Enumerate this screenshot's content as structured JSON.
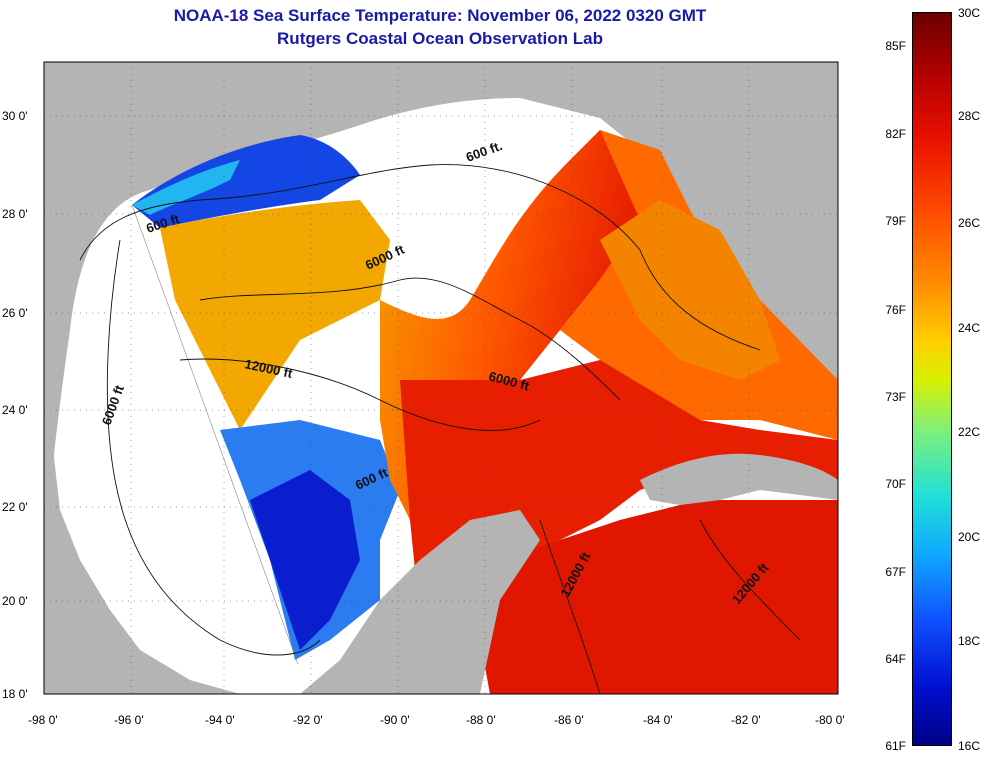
{
  "title": "NOAA-18 Sea Surface Temperature:  November 06, 2022 0320 GMT",
  "subtitle": "Rutgers Coastal Ocean Observation Lab",
  "axes": {
    "lat_labels": [
      "30 0'",
      "28 0'",
      "26 0'",
      "24 0'",
      "22 0'",
      "20 0'",
      "18 0'"
    ],
    "lon_labels": [
      "-98 0'",
      "-96 0'",
      "-94 0'",
      "-92 0'",
      "-90 0'",
      "-88 0'",
      "-86 0'",
      "-84 0'",
      "-82 0'",
      "-80 0'"
    ]
  },
  "contour_labels": [
    {
      "text": "600 ft."
    },
    {
      "text": "600 ft"
    },
    {
      "text": "6000 ft"
    },
    {
      "text": "12000 ft"
    },
    {
      "text": "6000 ft"
    },
    {
      "text": "6000 ft"
    },
    {
      "text": "600 ft"
    },
    {
      "text": "12000 ft"
    },
    {
      "text": "12000 ft"
    }
  ],
  "colorbar": {
    "fahrenheit": [
      "85F",
      "82F",
      "79F",
      "76F",
      "73F",
      "70F",
      "67F",
      "64F",
      "61F"
    ],
    "celsius": [
      "30C",
      "28C",
      "26C",
      "24C",
      "22C",
      "20C",
      "18C",
      "16C"
    ]
  },
  "colors": {
    "land": "#b4b4b4",
    "cloud": "#ffffff",
    "title": "#1a1aa8",
    "warm": "#e81e00",
    "cool": "#0a1ed0"
  }
}
